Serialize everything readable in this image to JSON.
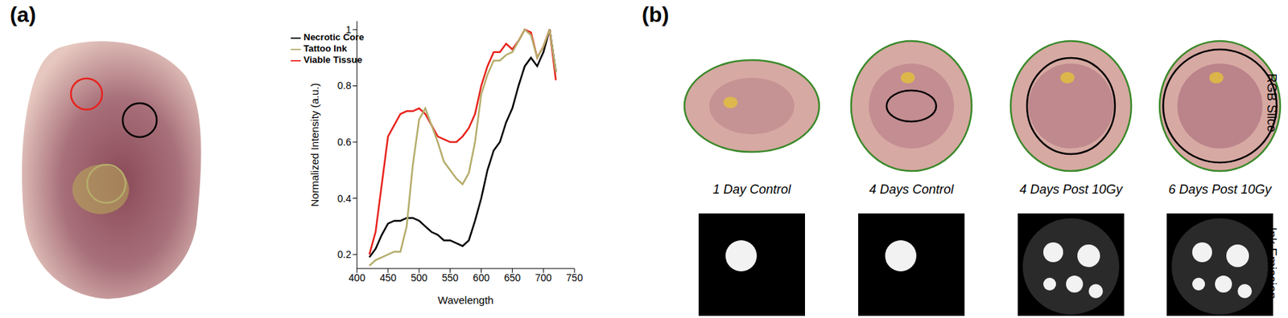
{
  "chart_data": {
    "type": "line",
    "x": [
      420,
      430,
      440,
      450,
      460,
      470,
      480,
      490,
      500,
      510,
      520,
      530,
      540,
      550,
      560,
      570,
      580,
      590,
      600,
      610,
      620,
      630,
      640,
      650,
      660,
      670,
      680,
      690,
      700,
      710,
      720
    ],
    "series": [
      {
        "name": "Necrotic Core",
        "color": "#000000",
        "values": [
          0.19,
          0.22,
          0.27,
          0.31,
          0.32,
          0.32,
          0.33,
          0.33,
          0.32,
          0.3,
          0.28,
          0.27,
          0.25,
          0.25,
          0.24,
          0.23,
          0.25,
          0.32,
          0.4,
          0.5,
          0.57,
          0.6,
          0.67,
          0.72,
          0.8,
          0.87,
          0.9,
          0.87,
          0.92,
          1.0,
          0.85
        ]
      },
      {
        "name": "Viable Tissue",
        "color": "#e8221c",
        "values": [
          0.2,
          0.28,
          0.45,
          0.62,
          0.66,
          0.7,
          0.71,
          0.71,
          0.72,
          0.7,
          0.66,
          0.62,
          0.61,
          0.6,
          0.6,
          0.62,
          0.65,
          0.7,
          0.8,
          0.87,
          0.92,
          0.92,
          0.95,
          0.93,
          0.96,
          1.0,
          0.99,
          0.9,
          0.94,
          1.0,
          0.82
        ]
      },
      {
        "name": "Tattoo Ink",
        "color": "#b5ad6b",
        "values": [
          0.16,
          0.18,
          0.19,
          0.2,
          0.21,
          0.21,
          0.3,
          0.52,
          0.68,
          0.72,
          0.66,
          0.6,
          0.53,
          0.5,
          0.47,
          0.45,
          0.49,
          0.6,
          0.77,
          0.84,
          0.89,
          0.89,
          0.91,
          0.92,
          0.96,
          1.0,
          0.98,
          0.9,
          0.94,
          1.0,
          0.85
        ]
      }
    ],
    "xlim": [
      400,
      750
    ],
    "xticks": [
      400,
      450,
      500,
      550,
      600,
      650,
      700,
      750
    ],
    "ylim": [
      0.15,
      1.03
    ],
    "yticks": [
      0.2,
      0.4,
      0.6,
      0.8,
      1
    ],
    "x_label": "Wavelength",
    "y_label": "Normalized Intensity (a.u.)",
    "legend": "upper left",
    "line_style": "solid"
  },
  "panels": {
    "a": {
      "label": "(a)"
    },
    "b": {
      "label": "(b)",
      "columns": [
        "1 Day Control",
        "4 Days Control",
        "4 Days Post 10Gy",
        "6 Days Post 10Gy"
      ],
      "rows": [
        "RGB Slice",
        "Ink Emission"
      ]
    }
  }
}
